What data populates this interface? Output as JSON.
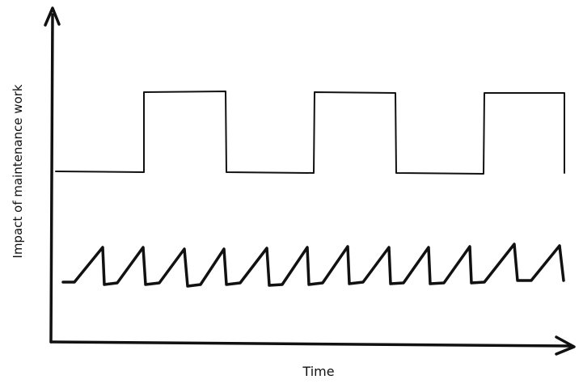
{
  "diagram": {
    "x_axis_label": "Time",
    "y_axis_label": "Impact of maintenance work",
    "series": [
      {
        "pattern": "square-wave",
        "cycles": 3,
        "relative_level": "low baseline with periodic high plateaus"
      },
      {
        "pattern": "sawtooth",
        "cycles": 12,
        "relative_level": "small frequent spikes near the bottom"
      }
    ],
    "colors": {
      "ink": "#111111",
      "background": "#ffffff"
    }
  }
}
